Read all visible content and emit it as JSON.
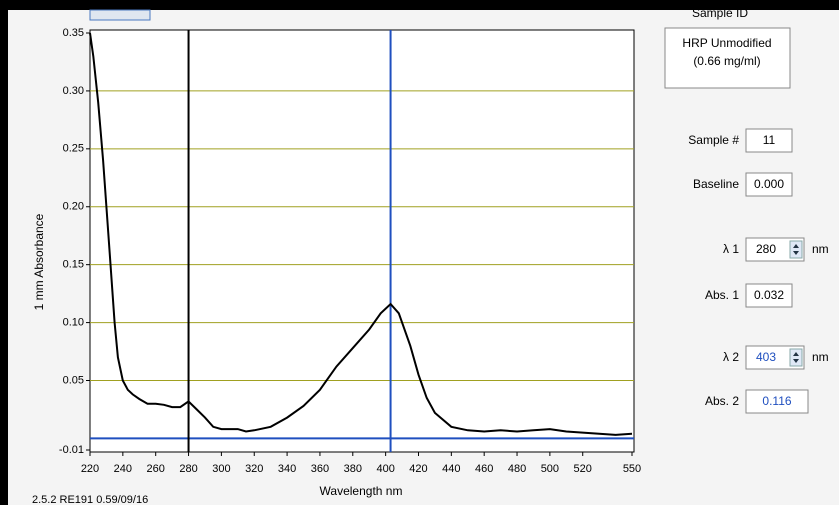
{
  "chart_data": {
    "type": "line",
    "x": [
      220,
      222,
      225,
      228,
      230,
      232,
      235,
      237,
      240,
      243,
      246,
      250,
      255,
      260,
      265,
      270,
      275,
      280,
      285,
      290,
      295,
      300,
      310,
      315,
      320,
      330,
      340,
      350,
      360,
      370,
      380,
      390,
      397,
      403,
      408,
      415,
      420,
      425,
      430,
      440,
      450,
      460,
      470,
      480,
      490,
      500,
      510,
      520,
      530,
      540,
      550
    ],
    "values": [
      0.35,
      0.33,
      0.29,
      0.24,
      0.2,
      0.16,
      0.1,
      0.07,
      0.05,
      0.042,
      0.038,
      0.034,
      0.03,
      0.03,
      0.029,
      0.027,
      0.027,
      0.032,
      0.025,
      0.018,
      0.01,
      0.008,
      0.008,
      0.006,
      0.007,
      0.01,
      0.018,
      0.028,
      0.042,
      0.062,
      0.078,
      0.094,
      0.108,
      0.116,
      0.108,
      0.08,
      0.055,
      0.035,
      0.022,
      0.01,
      0.007,
      0.006,
      0.007,
      0.006,
      0.007,
      0.008,
      0.006,
      0.005,
      0.004,
      0.003,
      0.004
    ],
    "color": "#000000",
    "x_label": "Wavelength nm",
    "y_label": "1 mm Absorbance",
    "xlim": [
      220,
      550
    ],
    "ylim": [
      -0.01,
      0.35
    ],
    "xticks": [
      220,
      240,
      260,
      280,
      300,
      320,
      340,
      360,
      380,
      400,
      420,
      440,
      460,
      480,
      500,
      520,
      550
    ],
    "yticks": [
      0.35,
      {
        "value": 0.3,
        "label": "0.30"
      },
      0.25,
      {
        "value": 0.2,
        "label": "0.20"
      },
      0.15,
      {
        "value": 0.1,
        "label": "0.10"
      },
      0.05,
      -0.01
    ],
    "grid": true,
    "grid_color": "#a0a020",
    "baseline": 0,
    "baseline_color": "#1f4fbf",
    "markers": [
      {
        "x": 280,
        "color": "#000000"
      },
      {
        "x": 403,
        "color": "#1f4fbf"
      }
    ]
  },
  "panel": {
    "sample_id_label": "Sample ID",
    "sample_id": [
      "HRP Unmodified",
      "(0.66 mg/ml)"
    ],
    "sample_number_label": "Sample #",
    "sample_number": "11",
    "baseline_label": "Baseline",
    "baseline": "0.000",
    "lambda1_label": "λ 1",
    "lambda1": "280",
    "lambda1_unit": "nm",
    "abs1_label": "Abs. 1",
    "abs1": "0.032",
    "lambda2_label": "λ 2",
    "lambda2": "403",
    "lambda2_unit": "nm",
    "abs2_label": "Abs. 2",
    "abs2": "0.116"
  },
  "footer": "2.5.2 RE191 0.59/09/16"
}
